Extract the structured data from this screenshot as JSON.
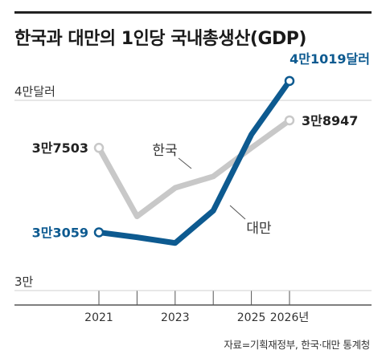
{
  "title": "한국과 대만의 1인당 국내총생산(GDP)",
  "source": "자료=기획재정부, 한국·대만 통계청",
  "chart_data": {
    "type": "line",
    "title": "한국과 대만의 1인당 국내총생산(GDP)",
    "x": [
      2021,
      2022,
      2023,
      2024,
      2025,
      2026
    ],
    "x_tick_labels": [
      "2021",
      "2023",
      "2025",
      "2026년"
    ],
    "x_tick_values": [
      2021,
      2023,
      2025,
      2026
    ],
    "y_tick_labels": [
      "4만달러",
      "3만"
    ],
    "y_tick_values": [
      40000,
      30000
    ],
    "ylim": [
      30000,
      40000
    ],
    "grid": false,
    "series": [
      {
        "name": "한국",
        "color": "#c8c8c8",
        "values": [
          37503,
          33900,
          35400,
          36000,
          37500,
          38947
        ],
        "start_label": "3만7503",
        "end_label": "3만8947"
      },
      {
        "name": "대만",
        "color": "#0d5a90",
        "values": [
          33059,
          32800,
          32500,
          34200,
          38200,
          41019
        ],
        "start_label": "3만3059",
        "end_label": "4만1019달러"
      }
    ]
  }
}
